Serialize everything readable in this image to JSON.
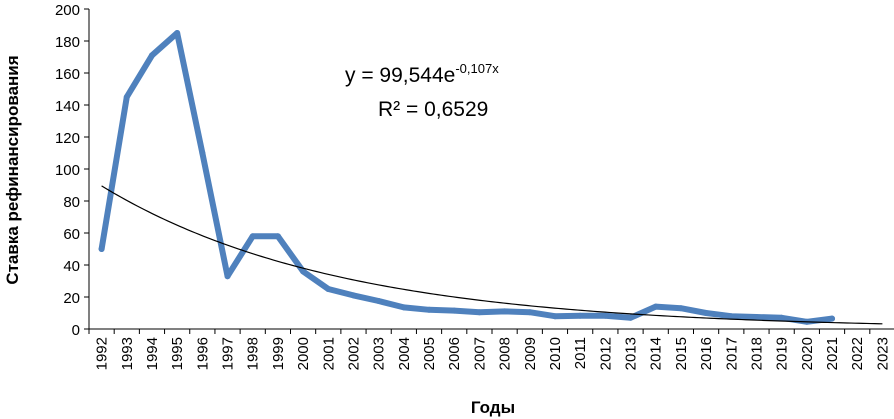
{
  "chart_data": {
    "type": "line",
    "xlabel": "Годы",
    "ylabel": "Ставка рефинансирования",
    "ylim": [
      0,
      200
    ],
    "ytick_step": 20,
    "grid": false,
    "x": [
      "1992",
      "1993",
      "1994",
      "1995",
      "1996",
      "1997",
      "1998",
      "1999",
      "2000",
      "2001",
      "2002",
      "2003",
      "2004",
      "2005",
      "2006",
      "2007",
      "2008",
      "2009",
      "2010",
      "2011",
      "2012",
      "2013",
      "2014",
      "2015",
      "2016",
      "2017",
      "2018",
      "2019",
      "2020",
      "2021",
      "2022",
      "2023"
    ],
    "series": [
      {
        "values": [
          50,
          145,
          171,
          185,
          110,
          33,
          58,
          58,
          36,
          25,
          21,
          17.5,
          13.5,
          12,
          11.5,
          10.5,
          11,
          10.5,
          8,
          8.25,
          8.25,
          7,
          14,
          13,
          10,
          8,
          7.5,
          7,
          4.5,
          6.5,
          null,
          null
        ],
        "color": "#4f81bd"
      }
    ],
    "trendline": {
      "type": "exponential",
      "a": 99.544,
      "b": -0.107,
      "color": "#000000"
    },
    "equation": {
      "prefix": "y = 99,544e",
      "exponent": "-0,107x",
      "r2": "R² = 0,6529"
    }
  }
}
